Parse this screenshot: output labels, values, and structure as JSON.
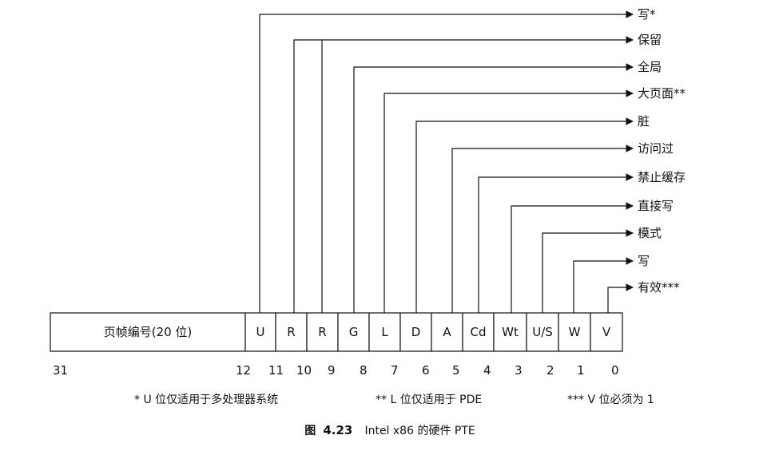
{
  "diagram": {
    "fields": [
      {
        "label": "页帧编号(20 位)",
        "desc": ""
      },
      {
        "label": "U",
        "desc": "写*"
      },
      {
        "label": "R",
        "desc": "保留"
      },
      {
        "label": "R",
        "desc": ""
      },
      {
        "label": "G",
        "desc": "全局"
      },
      {
        "label": "L",
        "desc": "大页面**"
      },
      {
        "label": "D",
        "desc": "脏"
      },
      {
        "label": "A",
        "desc": "访问过"
      },
      {
        "label": "Cd",
        "desc": "禁止缓存"
      },
      {
        "label": "Wt",
        "desc": "直接写"
      },
      {
        "label": "U/S",
        "desc": "模式"
      },
      {
        "label": "W",
        "desc": "写"
      },
      {
        "label": "V",
        "desc": "有效***"
      }
    ],
    "bit_numbers": [
      "31",
      "12",
      "11",
      "10",
      "9",
      "8",
      "7",
      "6",
      "5",
      "4",
      "3",
      "2",
      "1",
      "0"
    ],
    "notes": {
      "note1": "* U 位仅适用于多处理器系统",
      "note2": "** L 位仅适用于 PDE",
      "note3": "*** V 位必须为 1"
    }
  },
  "caption": {
    "prefix": "图",
    "number": "4.23",
    "text": "Intel x86 的硬件 PTE"
  }
}
